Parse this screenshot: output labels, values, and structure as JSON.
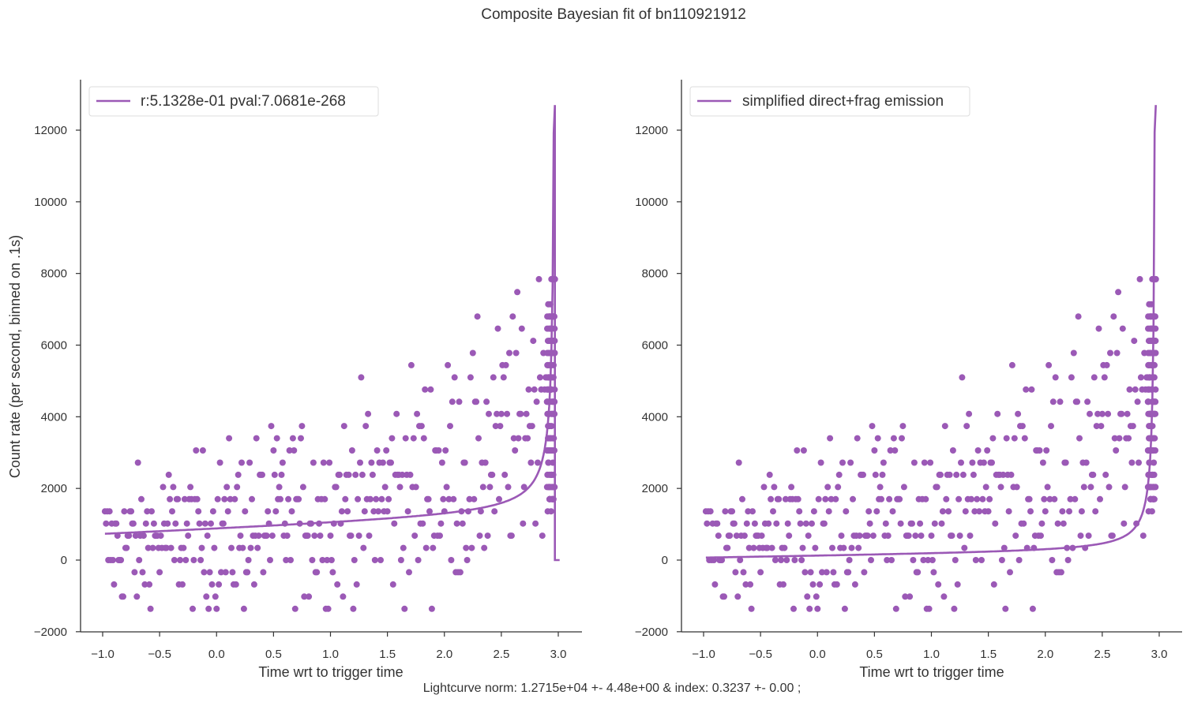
{
  "figure": {
    "title": "Composite Bayesian fit of bn110921912",
    "footer": "Lightcurve norm: 1.2715e+04 +- 4.48e+00 & index: 0.3237 +- 0.00 ;",
    "color": "#9b59b6"
  },
  "chart_data": [
    {
      "type": "scatter",
      "title": "",
      "xlabel": "Time wrt to trigger time",
      "ylabel": "Count rate (per second, binned on .1s)",
      "xlim": [
        -1.2,
        3.2
      ],
      "ylim": [
        -2000,
        13500
      ],
      "xticks": [
        -1.0,
        -0.5,
        0.0,
        0.5,
        1.0,
        1.5,
        2.0,
        2.5,
        3.0
      ],
      "xtick_labels": [
        "−1.0",
        "−0.5",
        "0.0",
        "0.5",
        "1.0",
        "1.5",
        "2.0",
        "2.5",
        "3.0"
      ],
      "yticks": [
        -2000,
        0,
        2000,
        4000,
        6000,
        8000,
        10000,
        12000
      ],
      "ytick_labels": [
        "−2000",
        "0",
        "2000",
        "4000",
        "6000",
        "8000",
        "10000",
        "12000"
      ],
      "legend": {
        "placement": "top-left",
        "label": "r:5.1328e-01  pval:7.0681e-268"
      },
      "fit_model": "linear-x-plus-powerlaw",
      "grid": false
    },
    {
      "type": "scatter",
      "title": "",
      "xlabel": "Time wrt to trigger time",
      "ylabel": "",
      "xlim": [
        -1.2,
        3.2
      ],
      "ylim": [
        -2000,
        13500
      ],
      "xticks": [
        -1.0,
        -0.5,
        0.0,
        0.5,
        1.0,
        1.5,
        2.0,
        2.5,
        3.0
      ],
      "xtick_labels": [
        "−1.0",
        "−0.5",
        "0.0",
        "0.5",
        "1.0",
        "1.5",
        "2.0",
        "2.5",
        "3.0"
      ],
      "yticks": [
        -2000,
        0,
        2000,
        4000,
        6000,
        8000,
        10000,
        12000
      ],
      "ytick_labels": [
        "−2000",
        "0",
        "2000",
        "4000",
        "6000",
        "8000",
        "10000",
        "12000"
      ],
      "legend": {
        "placement": "top-left",
        "label": "simplified direct+frag emission"
      },
      "fit_model": "powerlaw",
      "grid": false
    }
  ],
  "shared_data": {
    "t_range": [
      -0.98,
      2.97
    ],
    "t_step": 0.01,
    "count_levels": [
      -1360,
      -1020,
      -680,
      -340,
      0,
      340,
      680,
      1020,
      1360,
      1700,
      2040,
      2380,
      2720,
      3060,
      3400,
      3740,
      4080,
      4420,
      4760,
      5100,
      5440,
      5780,
      6120,
      6460,
      6800,
      7140,
      7480,
      7840
    ],
    "trigger_time": 2.97,
    "fit_norm": 12715,
    "fit_index": 0.3237,
    "fit_peak": 12700
  }
}
